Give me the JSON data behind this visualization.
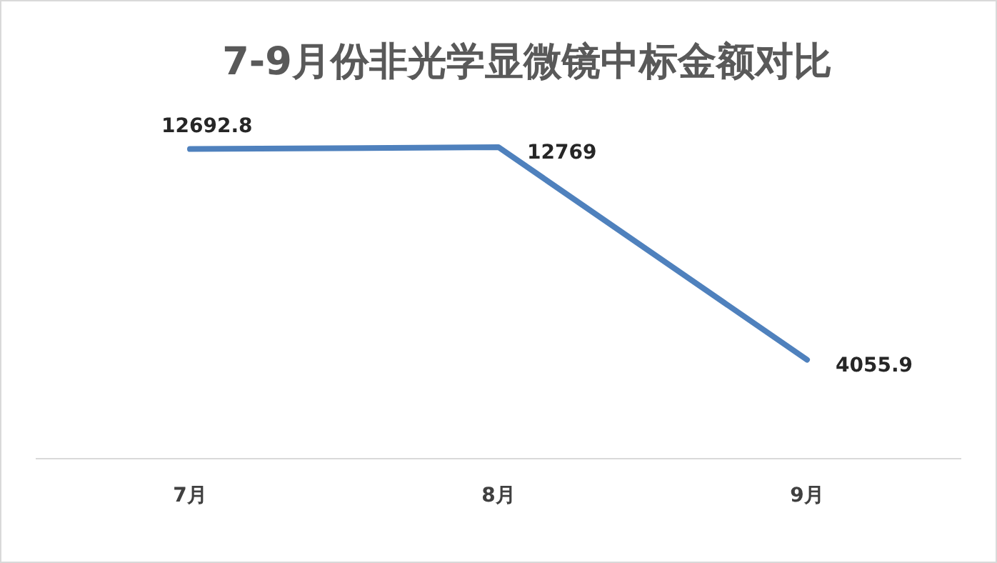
{
  "chart_data": {
    "type": "line",
    "title": "7-9月份非光学显微镜中标金额对比",
    "categories": [
      "7月",
      "8月",
      "9月"
    ],
    "series": [
      {
        "color": "#4f81bd",
        "values": [
          12692.8,
          12769,
          4055.9
        ]
      }
    ],
    "data_labels": true,
    "marker": "none",
    "line_style": "solid"
  }
}
